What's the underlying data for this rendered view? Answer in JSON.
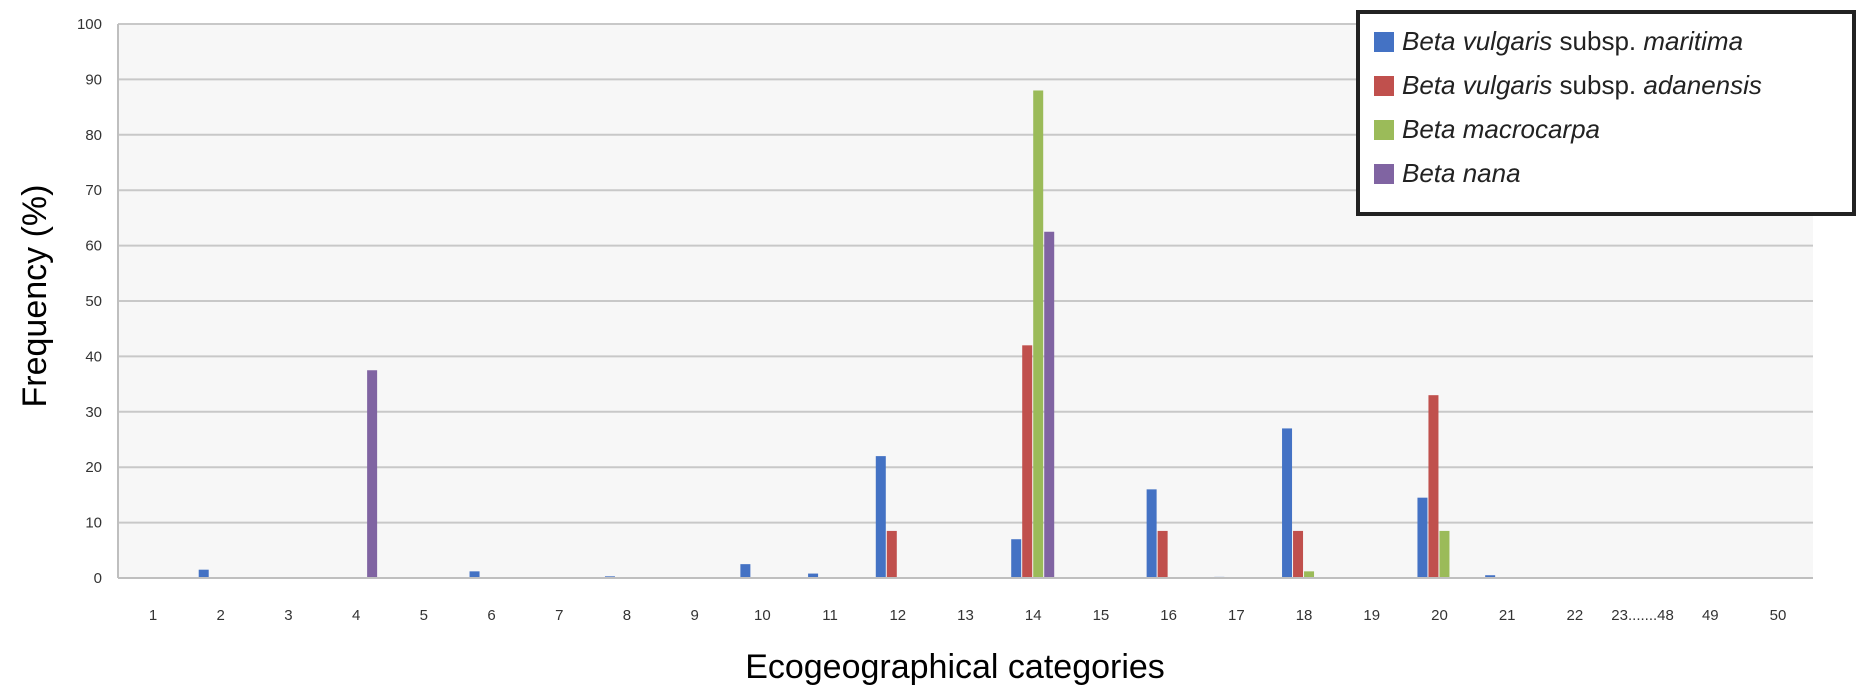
{
  "chart_data": {
    "type": "bar",
    "xlabel": "Ecogeographical categories",
    "ylabel": "Frequency (%)",
    "ylim": [
      0,
      100
    ],
    "yticks": [
      "0",
      "10",
      "20",
      "30",
      "40",
      "50",
      "60",
      "70",
      "80",
      "90",
      "100"
    ],
    "grid": true,
    "legend_position": "top-right",
    "categories": [
      "1",
      "2",
      "3",
      "4",
      "5",
      "6",
      "7",
      "8",
      "9",
      "10",
      "11",
      "12",
      "13",
      "14",
      "15",
      "16",
      "17",
      "18",
      "19",
      "20",
      "21",
      "22",
      "23.......48",
      "49",
      "50"
    ],
    "series": [
      {
        "name_italic": "Beta vulgaris",
        "name_plain": " subsp. ",
        "name_italic2": "maritima",
        "color": "#4472c4",
        "values": [
          0,
          1.5,
          0,
          0,
          0,
          1.2,
          0,
          0.3,
          0,
          2.5,
          0.8,
          22,
          0,
          7,
          0,
          16,
          0.2,
          27,
          0,
          14.5,
          0.5,
          0,
          0,
          0,
          0
        ]
      },
      {
        "name_italic": "Beta vulgaris",
        "name_plain": " subsp. ",
        "name_italic2": "adanensis",
        "color": "#c0504d",
        "values": [
          0,
          0,
          0,
          0,
          0,
          0,
          0,
          0,
          0,
          0,
          0,
          8.5,
          0,
          42,
          0,
          8.5,
          0,
          8.5,
          0,
          33,
          0,
          0,
          0,
          0,
          0
        ]
      },
      {
        "name_italic": "Beta macrocarpa",
        "name_plain": "",
        "name_italic2": "",
        "color": "#9bbb59",
        "values": [
          0,
          0,
          0,
          0,
          0,
          0,
          0,
          0,
          0,
          0,
          0,
          0,
          0,
          88,
          0,
          0,
          0,
          1.2,
          0,
          8.5,
          0,
          0,
          0,
          0,
          0
        ]
      },
      {
        "name_italic": "Beta nana",
        "name_plain": "",
        "name_italic2": "",
        "color": "#8064a2",
        "values": [
          0,
          0,
          0,
          37.5,
          0,
          0,
          0,
          0,
          0,
          0,
          0,
          0,
          0,
          62.5,
          0,
          0,
          0,
          0,
          0,
          0,
          0,
          0,
          0,
          0,
          0
        ]
      }
    ]
  }
}
